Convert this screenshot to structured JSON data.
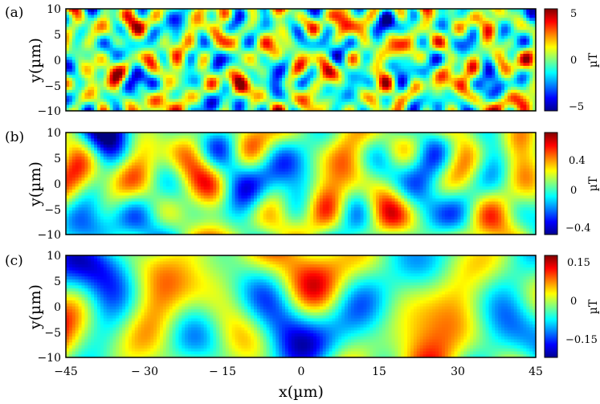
{
  "chart_data": [
    {
      "type": "heatmap",
      "panel_label": "(a)",
      "ylabel": "y(µm)",
      "xlim": [
        -45,
        45
      ],
      "ylim": [
        -10,
        10
      ],
      "y_ticks": [
        "10",
        "5",
        "0",
        "−5",
        "−10"
      ],
      "colorbar": {
        "ticks": [
          "5",
          "0",
          "−5"
        ],
        "tick_values": [
          5,
          0,
          -5
        ],
        "range": [
          -6.5,
          6.5
        ],
        "unit": "µT"
      },
      "pattern_scale": 1.0,
      "amplitude": 5
    },
    {
      "type": "heatmap",
      "panel_label": "(b)",
      "ylabel": "y(µm)",
      "xlim": [
        -45,
        45
      ],
      "ylim": [
        -10,
        10
      ],
      "y_ticks": [
        "10",
        "5",
        "0",
        "−5",
        "−10"
      ],
      "colorbar": {
        "ticks": [
          "0.4",
          "0",
          "−0.4"
        ],
        "tick_values": [
          0.4,
          0,
          -0.4
        ],
        "range": [
          -0.55,
          0.55
        ],
        "unit": "µT"
      },
      "pattern_scale": 2.2,
      "amplitude": 0.4
    },
    {
      "type": "heatmap",
      "panel_label": "(c)",
      "ylabel": "y(µm)",
      "xlabel": "x(µm)",
      "xlim": [
        -45,
        45
      ],
      "ylim": [
        -10,
        10
      ],
      "x_ticks": [
        "−45",
        "− 30",
        "− 15",
        "0",
        "15",
        "30",
        "45"
      ],
      "y_ticks": [
        "10",
        "5",
        "0",
        "−5",
        "−10"
      ],
      "colorbar": {
        "ticks": [
          "0.15",
          "0",
          "−0.15"
        ],
        "tick_values": [
          0.15,
          0,
          -0.15
        ],
        "range": [
          -0.2,
          0.2
        ],
        "unit": "µT"
      },
      "pattern_scale": 3.2,
      "amplitude": 0.15
    }
  ]
}
